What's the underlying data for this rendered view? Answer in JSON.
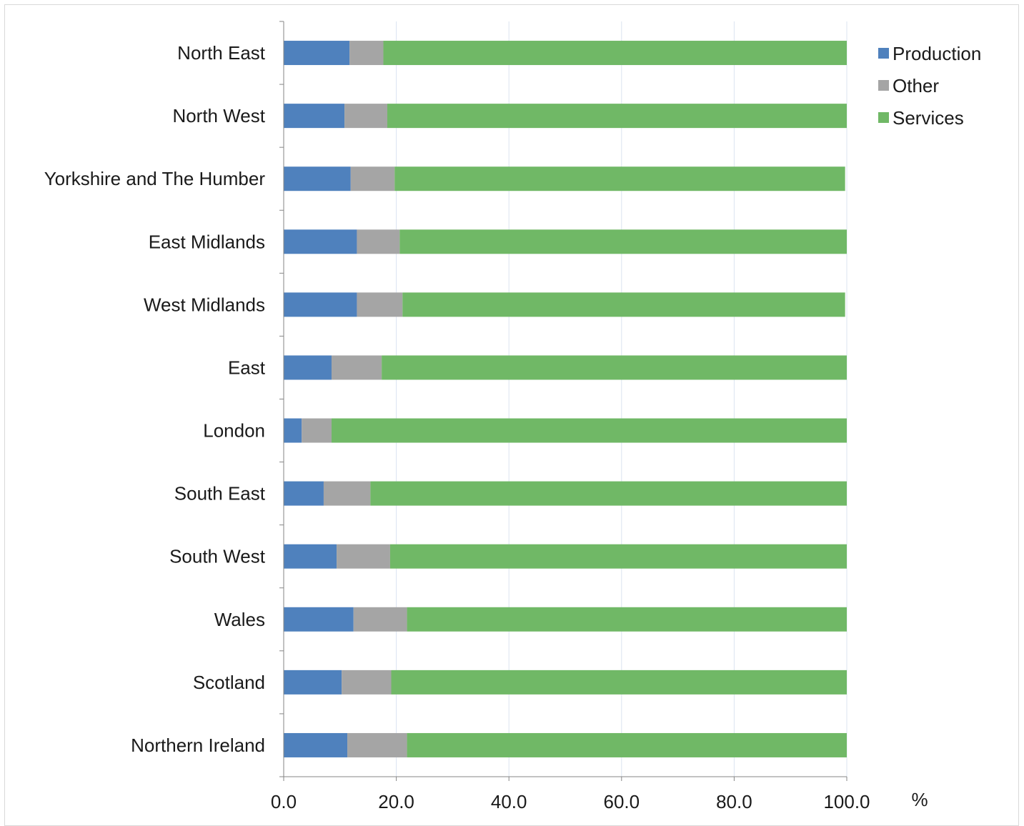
{
  "chart_data": {
    "type": "bar",
    "orientation": "horizontal",
    "stacked": true,
    "categories": [
      "North East",
      "North West",
      "Yorkshire and The Humber",
      "East Midlands",
      "West Midlands",
      "East",
      "London",
      "South East",
      "South West",
      "Wales",
      "Scotland",
      "Northern Ireland"
    ],
    "series": [
      {
        "name": "Production",
        "color": "#4f81bd",
        "values": [
          11.7,
          10.8,
          11.9,
          13.0,
          13.0,
          8.5,
          3.2,
          7.1,
          9.4,
          12.4,
          10.3,
          11.3
        ]
      },
      {
        "name": "Other",
        "color": "#a5a5a5",
        "values": [
          6.0,
          7.6,
          7.8,
          7.6,
          8.1,
          8.9,
          5.3,
          8.3,
          9.5,
          9.5,
          8.8,
          10.6
        ]
      },
      {
        "name": "Services",
        "color": "#70b866",
        "values": [
          82.3,
          81.6,
          80.0,
          79.4,
          78.6,
          82.6,
          91.5,
          84.6,
          81.1,
          78.1,
          80.9,
          78.1
        ]
      }
    ],
    "xlim": [
      0,
      100
    ],
    "x_ticks": [
      "0.0",
      "20.0",
      "40.0",
      "60.0",
      "80.0",
      "100.0"
    ],
    "xlabel": "%",
    "ylabel": "",
    "title": "",
    "grid": "vertical",
    "legend_position": "top-right"
  }
}
